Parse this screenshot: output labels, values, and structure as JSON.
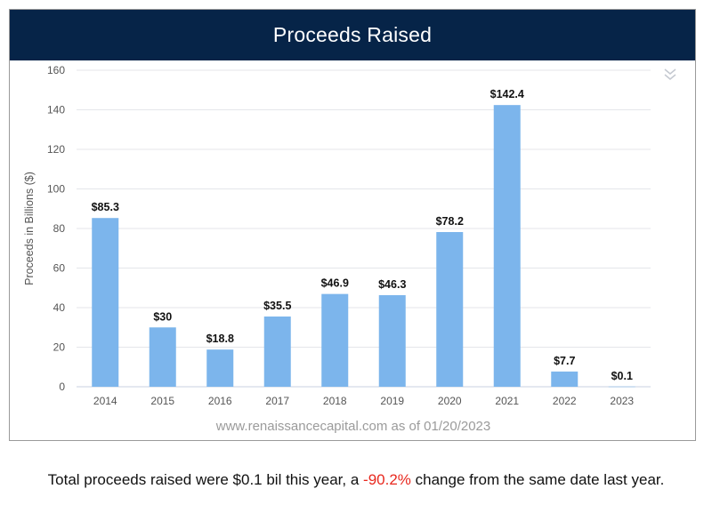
{
  "header": {
    "title": "Proceeds Raised"
  },
  "watermark": "www.renaissancecapital.com as of 01/20/2023",
  "footer": {
    "prefix": "Total proceeds raised were $0.1 bil this year, a ",
    "change": "-90.2%",
    "suffix": " change from the same date last year."
  },
  "icons": {
    "collapse": "double-chevron-down-icon"
  },
  "colors": {
    "header_bg": "#062448",
    "bar": "#7cb5ec",
    "change_text": "#e8281e"
  },
  "chart_data": {
    "type": "bar",
    "title": "",
    "xlabel": "",
    "ylabel": "Proceeds in Billions ($)",
    "categories": [
      "2014",
      "2015",
      "2016",
      "2017",
      "2018",
      "2019",
      "2020",
      "2021",
      "2022",
      "2023"
    ],
    "values": [
      85.3,
      30,
      18.8,
      35.5,
      46.9,
      46.3,
      78.2,
      142.4,
      7.7,
      0.1
    ],
    "data_labels": [
      "$85.3",
      "$30",
      "$18.8",
      "$35.5",
      "$46.9",
      "$46.3",
      "$78.2",
      "$142.4",
      "$7.7",
      "$0.1"
    ],
    "ylim": [
      0,
      160
    ],
    "yticks": [
      0,
      20,
      40,
      60,
      80,
      100,
      120,
      140,
      160
    ],
    "grid": true,
    "legend": "none"
  }
}
